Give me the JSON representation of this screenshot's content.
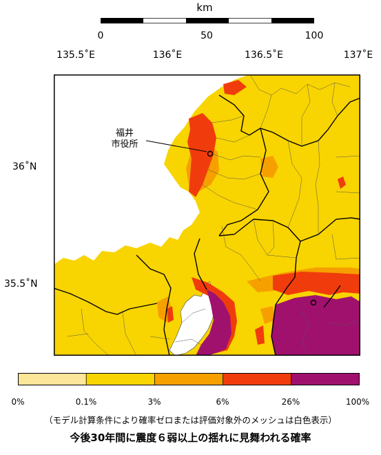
{
  "scale_bar": {
    "unit": "km",
    "ticks": [
      "0",
      "50",
      "100"
    ],
    "segment_colors": [
      "#000000",
      "#ffffff",
      "#000000",
      "#ffffff",
      "#000000"
    ]
  },
  "axes": {
    "longitude_labels": [
      "135.5˚E",
      "136˚E",
      "136.5˚E",
      "137˚E"
    ],
    "latitude_labels": [
      "36˚N",
      "35.5˚N"
    ]
  },
  "map": {
    "city_marker_label_line1": "福井",
    "city_marker_label_line2": "市役所",
    "colors": {
      "sea": "#ffffff",
      "boundary": "#000000",
      "municipal_boundary": "#555555"
    }
  },
  "legend": {
    "ticks": [
      "0%",
      "0.1%",
      "3%",
      "6%",
      "26%",
      "100%"
    ],
    "bins": [
      {
        "from": "0%",
        "to": "0.1%",
        "color": "#fbe69a"
      },
      {
        "from": "0.1%",
        "to": "3%",
        "color": "#f8d400"
      },
      {
        "from": "3%",
        "to": "6%",
        "color": "#f6a000"
      },
      {
        "from": "6%",
        "to": "26%",
        "color": "#f03c0c"
      },
      {
        "from": "26%",
        "to": "100%",
        "color": "#a0116e"
      }
    ]
  },
  "note": "（モデル計算条件により確率ゼロまたは評価対象外のメッシュは白色表示）",
  "title": "今後30年間に震度６弱以上の揺れに見舞われる確率"
}
